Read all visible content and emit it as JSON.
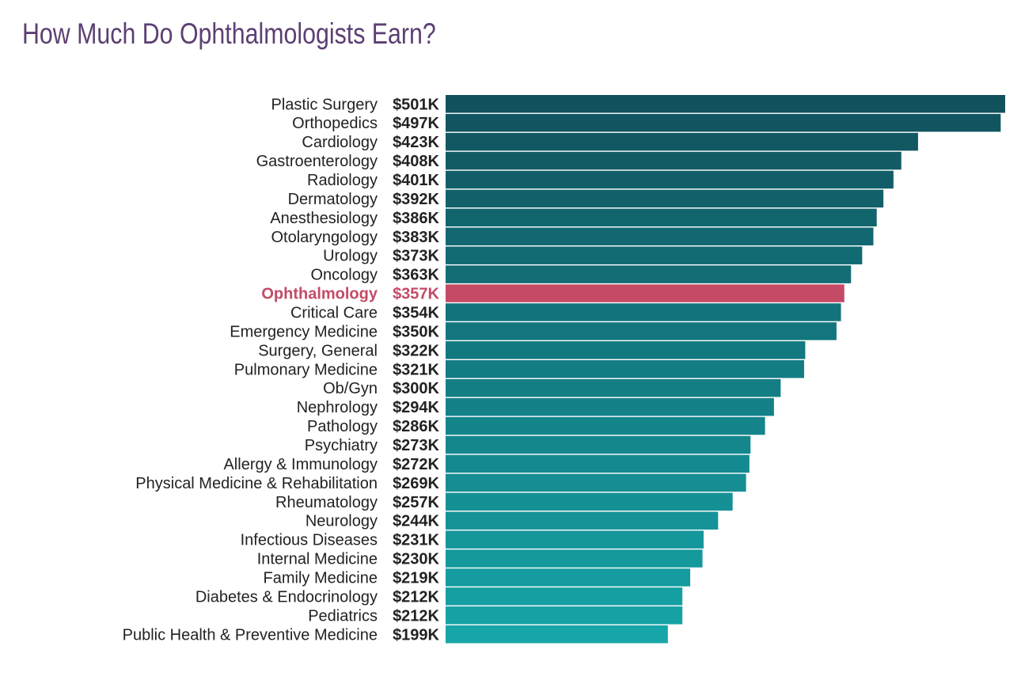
{
  "chart_data": {
    "type": "bar",
    "orientation": "horizontal",
    "title": "How Much Do Ophthalmologists Earn?",
    "categories": [
      "Plastic Surgery",
      "Orthopedics",
      "Cardiology",
      "Gastroenterology",
      "Radiology",
      "Dermatology",
      "Anesthesiology",
      "Otolaryngology",
      "Urology",
      "Oncology",
      "Ophthalmology",
      "Critical Care",
      "Emergency Medicine",
      "Surgery, General",
      "Pulmonary Medicine",
      "Ob/Gyn",
      "Nephrology",
      "Pathology",
      "Psychiatry",
      "Allergy & Immunology",
      "Physical Medicine & Rehabilitation",
      "Rheumatology",
      "Neurology",
      "Infectious Diseases",
      "Internal Medicine",
      "Family Medicine",
      "Diabetes & Endocrinology",
      "Pediatrics",
      "Public Health & Preventive Medicine"
    ],
    "values": [
      501,
      497,
      423,
      408,
      401,
      392,
      386,
      383,
      373,
      363,
      357,
      354,
      350,
      322,
      321,
      300,
      294,
      286,
      273,
      272,
      269,
      257,
      244,
      231,
      230,
      219,
      212,
      212,
      199
    ],
    "value_labels": [
      "$501K",
      "$497K",
      "$423K",
      "$408K",
      "$401K",
      "$392K",
      "$386K",
      "$383K",
      "$373K",
      "$363K",
      "$357K",
      "$354K",
      "$350K",
      "$322K",
      "$321K",
      "$300K",
      "$294K",
      "$286K",
      "$273K",
      "$272K",
      "$269K",
      "$257K",
      "$244K",
      "$231K",
      "$230K",
      "$219K",
      "$212K",
      "$212K",
      "$199K"
    ],
    "highlight": "Ophthalmology",
    "xlim": [
      0,
      501
    ],
    "grid": false,
    "legend": "none",
    "colors": {
      "top": "#11525d",
      "bottom": "#16a5a8",
      "highlight": "#c44a66",
      "title": "#5c3f73"
    }
  }
}
